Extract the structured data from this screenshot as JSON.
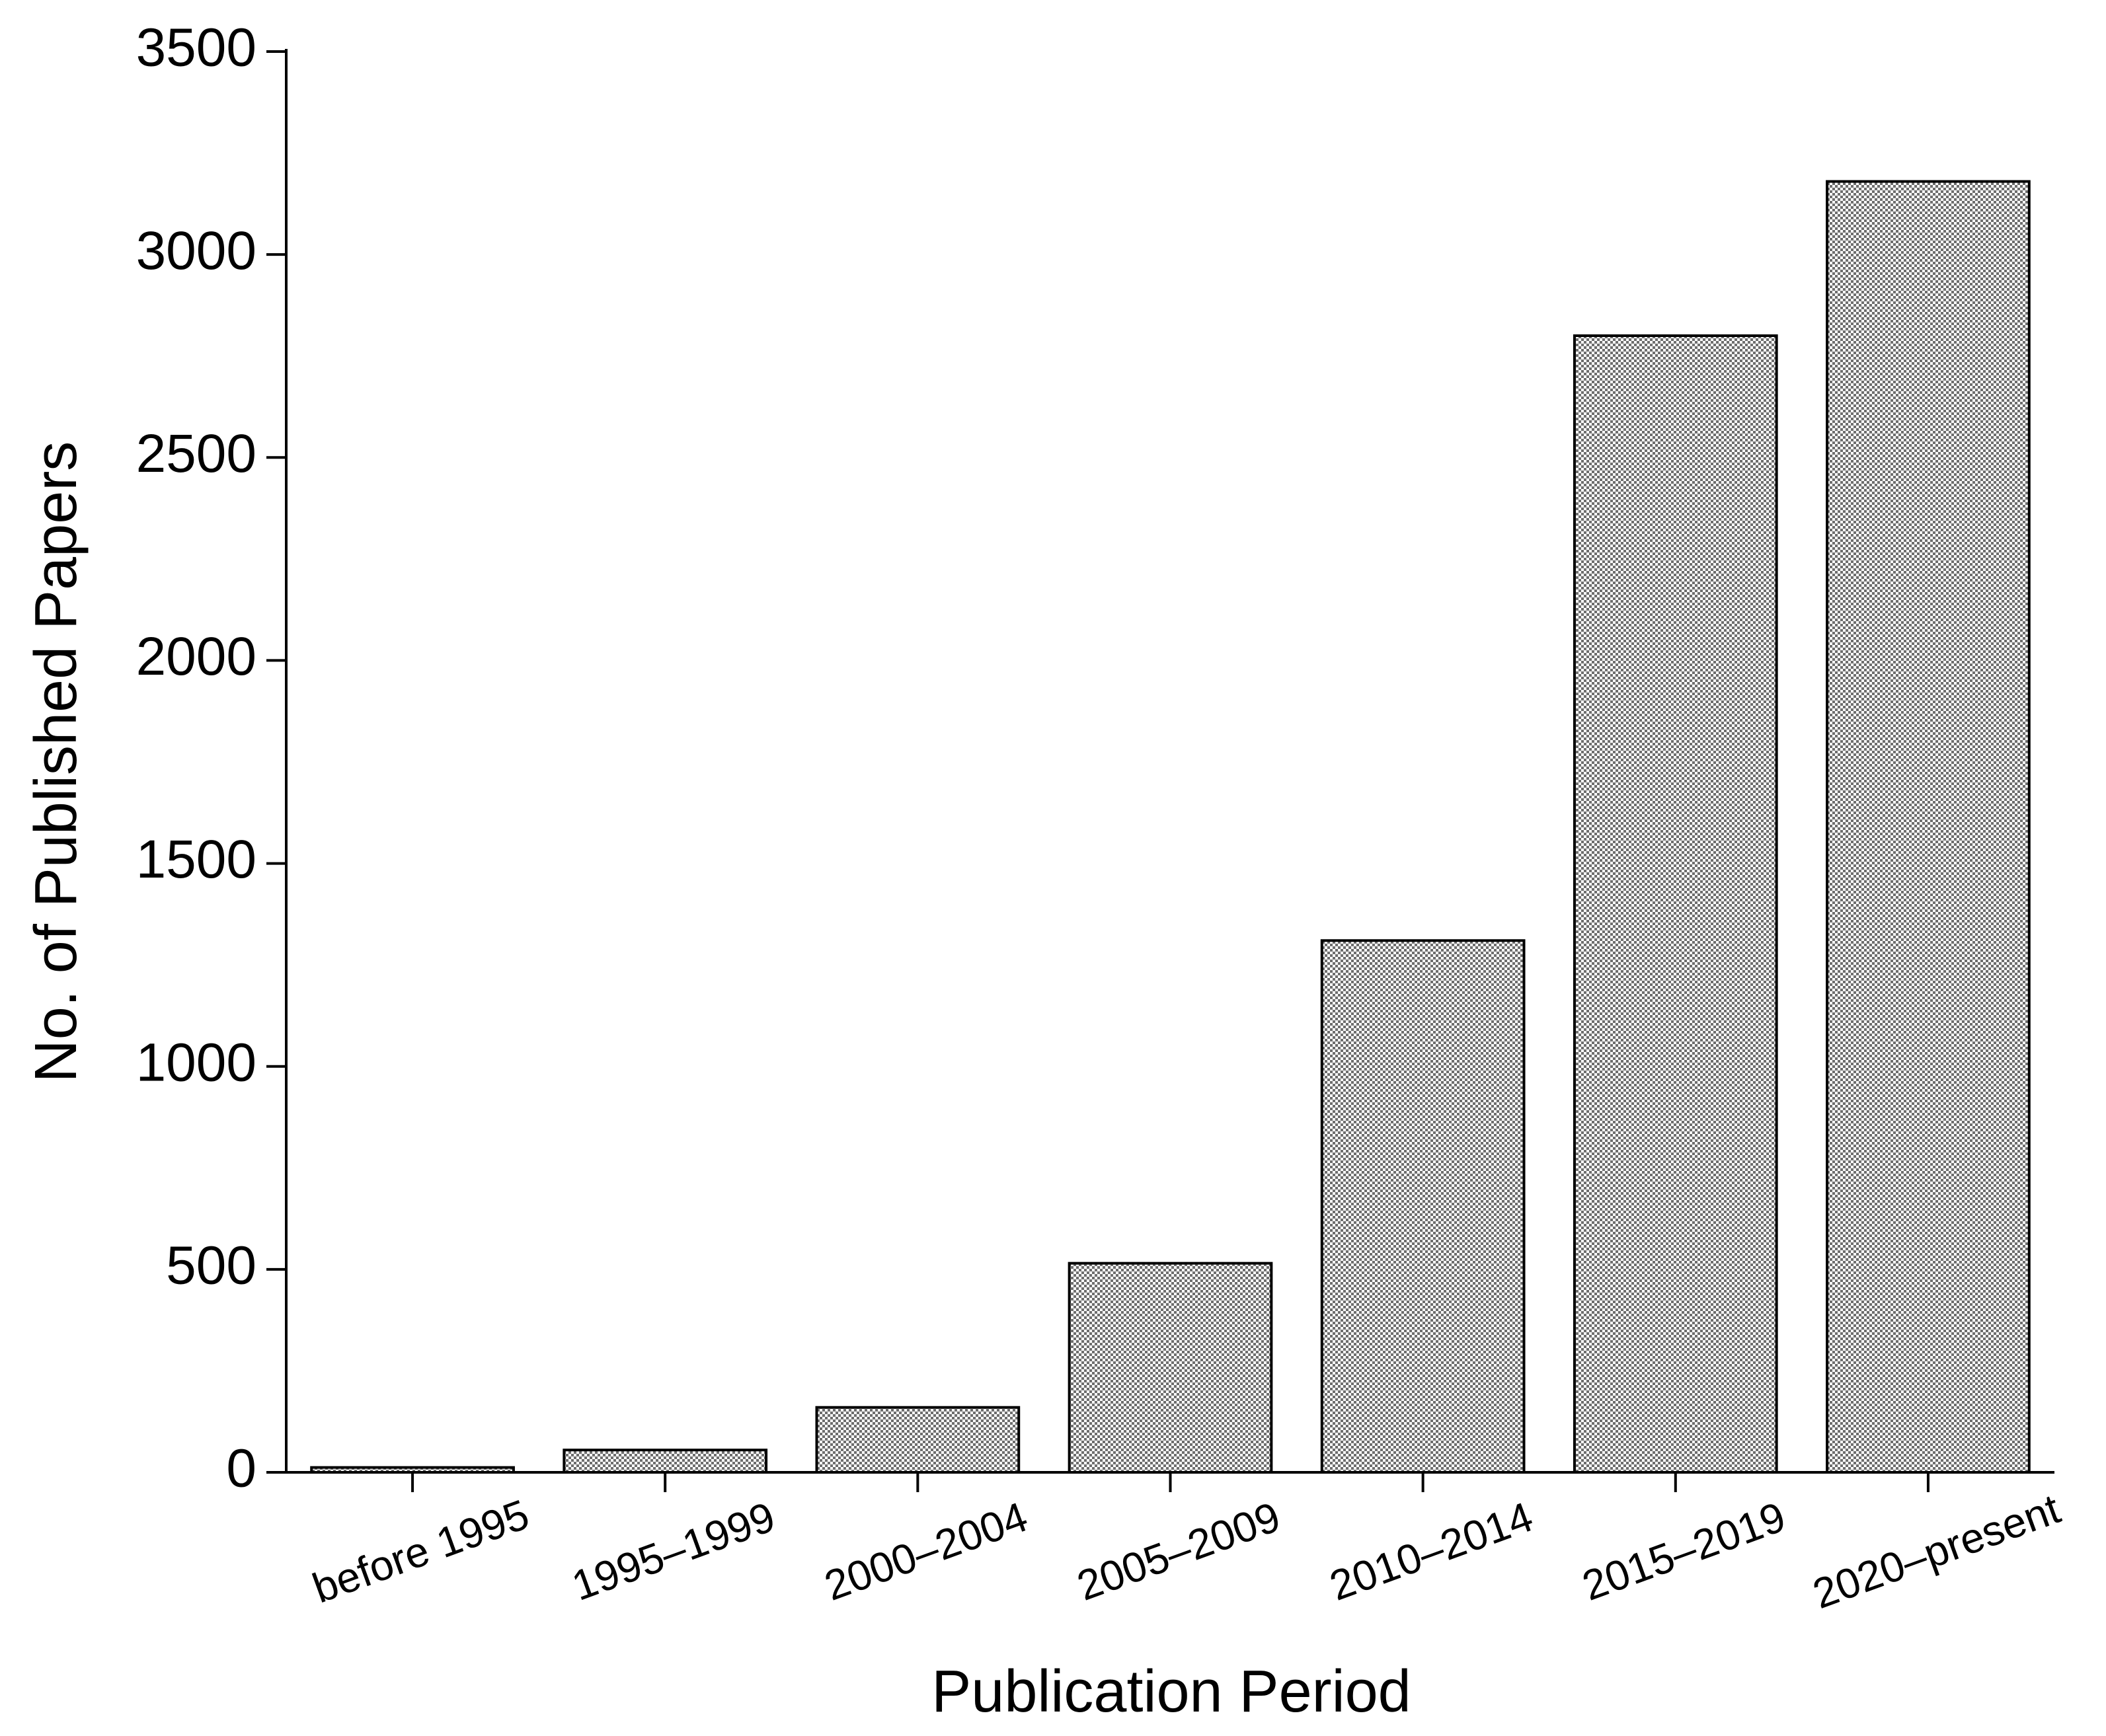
{
  "chart_data": {
    "type": "bar",
    "x_label": "Publication Period",
    "y_label": "No. of Published Papers",
    "categories": [
      "before 1995",
      "1995–1999",
      "2000–2004",
      "2005–2009",
      "2010–2014",
      "2015–2019",
      "2020–present"
    ],
    "values": [
      12,
      55,
      160,
      515,
      1310,
      2800,
      3180
    ],
    "color": "#6e6e6e",
    "ylim": [
      0,
      3500
    ],
    "yticks": [
      0,
      500,
      1000,
      1500,
      2000,
      2500,
      3000,
      3500
    ],
    "grid": false
  }
}
